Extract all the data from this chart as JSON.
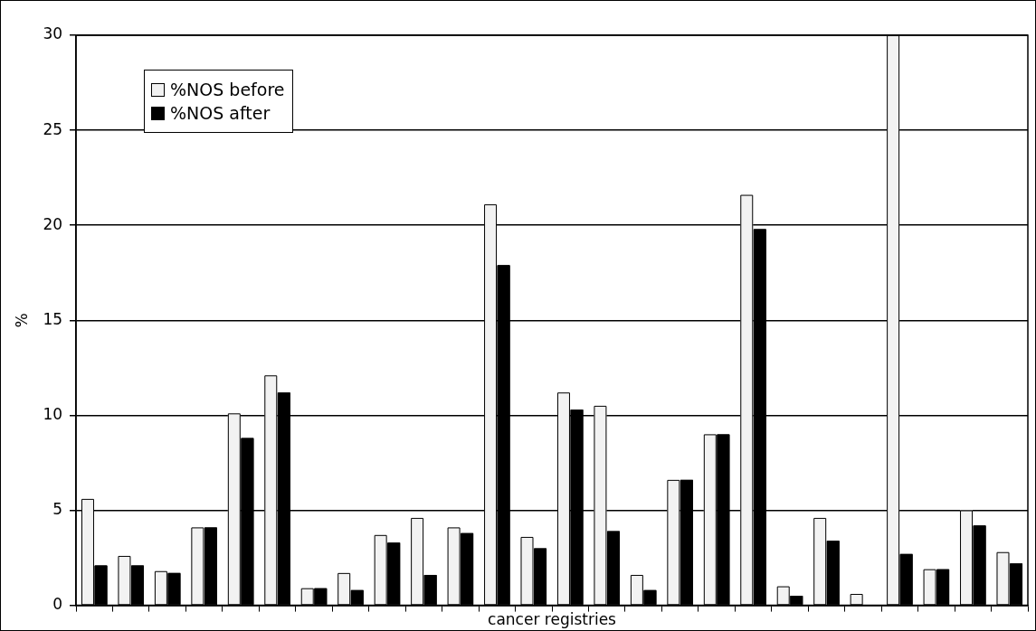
{
  "chart_data": {
    "type": "bar",
    "xlabel": "cancer registries",
    "ylabel": "%",
    "categories": [
      null,
      null,
      null,
      null,
      null,
      null,
      null,
      null,
      null,
      null,
      null,
      null,
      null,
      null,
      null,
      null,
      null,
      null,
      null,
      null,
      null,
      null,
      null,
      null,
      null,
      null
    ],
    "series": [
      {
        "name": "%NOS before",
        "color": "#f2f2f2",
        "values": [
          5.6,
          2.6,
          1.8,
          4.1,
          10.1,
          12.1,
          0.9,
          1.7,
          3.7,
          4.6,
          4.1,
          21.1,
          3.6,
          11.2,
          10.5,
          1.6,
          6.6,
          9.0,
          21.6,
          1.0,
          4.6,
          0.6,
          30.0,
          1.9,
          5.0,
          2.8
        ]
      },
      {
        "name": "%NOS after",
        "color": "#000000",
        "values": [
          2.1,
          2.1,
          1.7,
          4.1,
          8.8,
          11.2,
          0.9,
          0.8,
          3.3,
          1.6,
          3.8,
          17.9,
          3.0,
          10.3,
          3.9,
          0.8,
          6.6,
          9.0,
          19.8,
          0.5,
          3.4,
          0,
          2.7,
          1.9,
          4.2,
          2.2
        ]
      }
    ],
    "ylim": [
      0,
      30
    ],
    "yticks": [
      0,
      5,
      10,
      15,
      20,
      25,
      30
    ],
    "grid": "y",
    "legend": "top left"
  }
}
